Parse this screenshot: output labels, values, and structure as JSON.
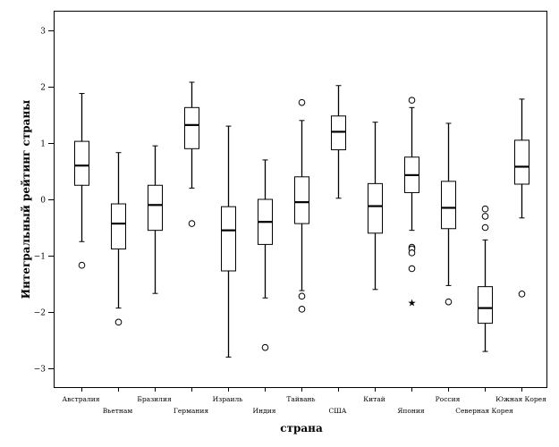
{
  "chart_data": {
    "type": "boxplot",
    "xlabel": "страна",
    "ylabel": "Интегральный  рейтинг  страны",
    "ylim": [
      -3.35,
      3.35
    ],
    "yticks": [
      3,
      2,
      1,
      0,
      -1,
      -2,
      -3
    ],
    "categories": [
      "Австралия",
      "Вьетнам",
      "Бразилия",
      "Германия",
      "Израиль",
      "Индия",
      "Тайвань",
      "США",
      "Китай",
      "Япония",
      "Россия",
      "Северная Корея",
      "Южная Корея"
    ],
    "boxes": [
      {
        "category": "Австралия",
        "whisker_low": -0.75,
        "q1": 0.25,
        "median": 0.6,
        "q3": 1.03,
        "whisker_high": 1.88,
        "outliers": [
          -1.17
        ],
        "extremes": []
      },
      {
        "category": "Вьетнам",
        "whisker_low": -1.93,
        "q1": -0.88,
        "median": -0.43,
        "q3": -0.08,
        "whisker_high": 0.83,
        "outliers": [
          -2.18
        ],
        "extremes": []
      },
      {
        "category": "Бразилия",
        "whisker_low": -1.67,
        "q1": -0.55,
        "median": -0.1,
        "q3": 0.25,
        "whisker_high": 0.95,
        "outliers": [],
        "extremes": []
      },
      {
        "category": "Германия",
        "whisker_low": 0.2,
        "q1": 0.9,
        "median": 1.32,
        "q3": 1.63,
        "whisker_high": 2.08,
        "outliers": [
          -0.43
        ],
        "extremes": []
      },
      {
        "category": "Израиль",
        "whisker_low": -2.8,
        "q1": -1.27,
        "median": -0.55,
        "q3": -0.13,
        "whisker_high": 1.3,
        "outliers": [],
        "extremes": []
      },
      {
        "category": "Индия",
        "whisker_low": -1.75,
        "q1": -0.8,
        "median": -0.4,
        "q3": 0.0,
        "whisker_high": 0.7,
        "outliers": [
          -2.63
        ],
        "extremes": []
      },
      {
        "category": "Тайвань",
        "whisker_low": -1.62,
        "q1": -0.43,
        "median": -0.05,
        "q3": 0.4,
        "whisker_high": 1.4,
        "outliers": [
          1.72,
          -1.72,
          -1.95
        ],
        "extremes": []
      },
      {
        "category": "США",
        "whisker_low": 0.02,
        "q1": 0.88,
        "median": 1.2,
        "q3": 1.48,
        "whisker_high": 2.02,
        "outliers": [],
        "extremes": []
      },
      {
        "category": "Китай",
        "whisker_low": -1.6,
        "q1": -0.6,
        "median": -0.12,
        "q3": 0.28,
        "whisker_high": 1.37,
        "outliers": [],
        "extremes": []
      },
      {
        "category": "Япония",
        "whisker_low": -0.55,
        "q1": 0.12,
        "median": 0.43,
        "q3": 0.75,
        "whisker_high": 1.63,
        "outliers": [
          1.76,
          -0.85,
          -0.88,
          -0.95,
          -1.23
        ],
        "extremes": [
          -1.83
        ]
      },
      {
        "category": "Россия",
        "whisker_low": -1.53,
        "q1": -0.52,
        "median": -0.15,
        "q3": 0.32,
        "whisker_high": 1.35,
        "outliers": [
          -1.82
        ],
        "extremes": []
      },
      {
        "category": "Северная Корея",
        "whisker_low": -2.7,
        "q1": -2.2,
        "median": -1.93,
        "q3": -1.55,
        "whisker_high": -0.72,
        "outliers": [
          -0.17,
          -0.3,
          -0.5
        ],
        "extremes": []
      },
      {
        "category": "Южная Корея",
        "whisker_low": -0.33,
        "q1": 0.27,
        "median": 0.58,
        "q3": 1.05,
        "whisker_high": 1.78,
        "outliers": [
          -1.68
        ],
        "extremes": []
      }
    ],
    "grid": false,
    "legend": "none"
  }
}
